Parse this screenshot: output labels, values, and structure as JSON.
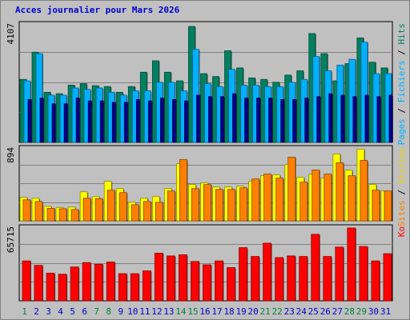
{
  "chart_data": {
    "type": "bar",
    "title": "Acces journalier pour Mars 2026",
    "categories": [
      "1",
      "2",
      "3",
      "4",
      "5",
      "6",
      "7",
      "8",
      "9",
      "10",
      "11",
      "12",
      "13",
      "14",
      "15",
      "16",
      "17",
      "18",
      "19",
      "20",
      "21",
      "22",
      "23",
      "24",
      "25",
      "26",
      "27",
      "28",
      "29",
      "30",
      "31"
    ],
    "weekend_days": [
      "1",
      "7",
      "8",
      "14",
      "15",
      "21",
      "22",
      "28",
      "29"
    ],
    "colors": {
      "hits": "#008060",
      "files": "#00b0ff",
      "pages": "#00008b",
      "visits": "#ffff00",
      "sites": "#ff8000",
      "kbytes": "#ff0000",
      "weekend_label": "#008040",
      "weekday_label": "#0000cc",
      "axis_label": "#000000"
    },
    "panels": [
      {
        "ymax_label": "4107",
        "ymax": 4107,
        "legend": [
          {
            "text": "Pages",
            "color": "#00b0ff"
          },
          {
            "text": " / ",
            "color": "#000000"
          },
          {
            "text": "Fichiers",
            "color": "#00b0ff"
          },
          {
            "text": " / ",
            "color": "#000000"
          },
          {
            "text": "Hits",
            "color": "#008060"
          }
        ],
        "series": [
          {
            "name": "Hits",
            "color": "#008060",
            "values": [
              2200,
              3150,
              1750,
              1700,
              2000,
              2050,
              1980,
              1950,
              1750,
              1950,
              2450,
              2850,
              2450,
              2150,
              4050,
              2400,
              2300,
              3200,
              2600,
              2250,
              2200,
              2100,
              2350,
              2500,
              3800,
              3100,
              2150,
              2750,
              3650,
              2800,
              2600
            ]
          },
          {
            "name": "Fichiers",
            "color": "#00b0ff",
            "values": [
              2150,
              3100,
              1650,
              1650,
              1900,
              1850,
              1900,
              1750,
              1650,
              1800,
              1800,
              2100,
              2100,
              1800,
              3250,
              2050,
              1950,
              2550,
              2000,
              2000,
              1950,
              1950,
              2100,
              2200,
              3000,
              2500,
              2700,
              2900,
              3500,
              2400,
              2400
            ]
          },
          {
            "name": "Pages",
            "color": "#00008b",
            "values": [
              1500,
              1550,
              1350,
              1350,
              1550,
              1450,
              1450,
              1400,
              1400,
              1500,
              1450,
              1550,
              1500,
              1450,
              1650,
              1600,
              1600,
              1700,
              1550,
              1550,
              1550,
              1500,
              1500,
              1550,
              1600,
              1700,
              1650,
              1600,
              1650,
              1600,
              1650
            ]
          }
        ]
      },
      {
        "ymax_label": "894",
        "ymax": 894,
        "legend": [
          {
            "text": "Sites",
            "color": "#ff8000"
          },
          {
            "text": " / ",
            "color": "#000000"
          },
          {
            "text": "Visites",
            "color": "#e8d000"
          }
        ],
        "series": [
          {
            "name": "Visites",
            "color": "#ffff00",
            "values": [
              290,
              280,
              180,
              165,
              170,
              360,
              300,
              490,
              400,
              230,
              280,
              300,
              400,
              710,
              450,
              470,
              420,
              420,
              430,
              490,
              560,
              570,
              700,
              540,
              580,
              530,
              830,
              630,
              890,
              450,
              370
            ]
          },
          {
            "name": "Sites",
            "color": "#ff8000",
            "values": [
              260,
              240,
              155,
              150,
              140,
              280,
              275,
              380,
              350,
              200,
              240,
              230,
              370,
              760,
              400,
              450,
              390,
              390,
              410,
              520,
              580,
              530,
              790,
              480,
              630,
              580,
              720,
              560,
              750,
              380,
              370
            ]
          }
        ]
      },
      {
        "ymax_label": "65715",
        "ymax": 65715,
        "legend": [
          {
            "text": "Ko",
            "color": "#ff0000"
          }
        ],
        "series": [
          {
            "name": "Ko",
            "color": "#ff0000",
            "values": [
              36000,
              32000,
              25000,
              24000,
              30500,
              34500,
              33000,
              35000,
              24500,
              24500,
              27000,
              43000,
              40500,
              41500,
              35500,
              32500,
              36000,
              30000,
              48000,
              40000,
              52000,
              39000,
              40500,
              40000,
              60000,
              40000,
              48500,
              65715,
              49000,
              36000,
              42500
            ]
          }
        ]
      }
    ]
  }
}
